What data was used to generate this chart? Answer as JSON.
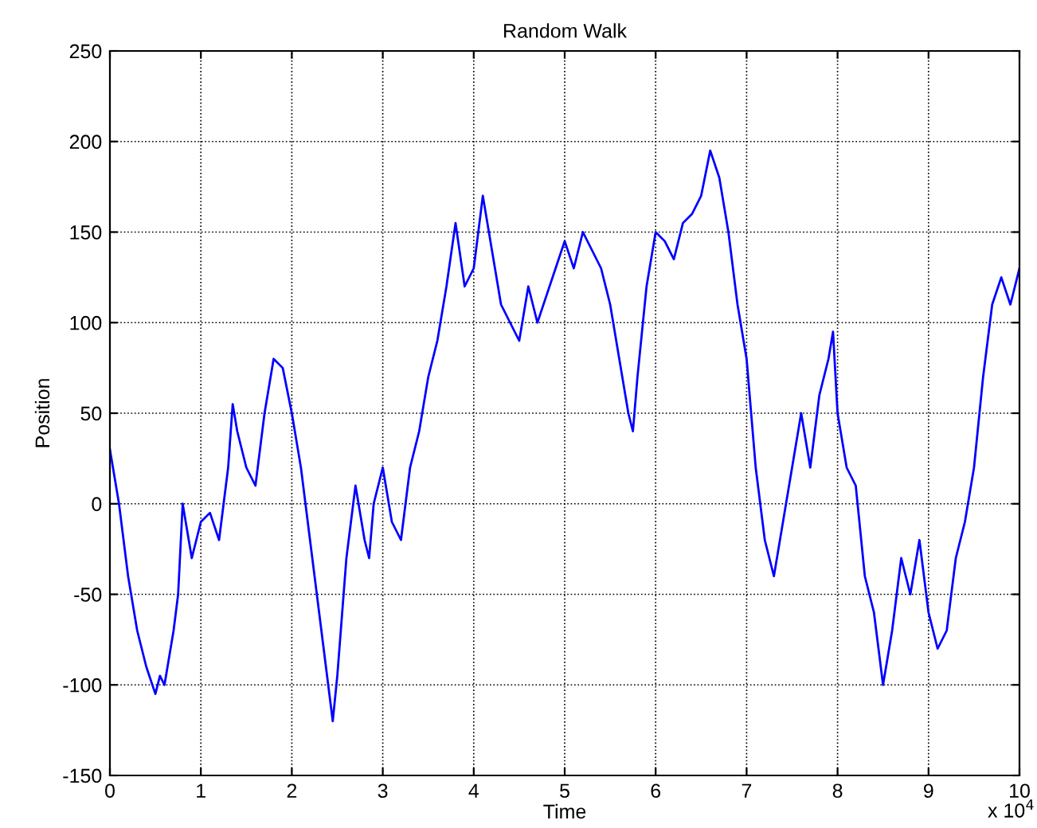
{
  "chart_data": {
    "type": "line",
    "title": "Random Walk",
    "xlabel": "Time",
    "ylabel": "Position",
    "annotations": [
      "x 10$^{4}$"
    ],
    "x": [
      0,
      0.1,
      0.2,
      0.3,
      0.4,
      0.5,
      0.55,
      0.6,
      0.7,
      0.75,
      0.8,
      0.9,
      1.0,
      1.1,
      1.2,
      1.3,
      1.35,
      1.4,
      1.5,
      1.6,
      1.7,
      1.8,
      1.9,
      2.0,
      2.1,
      2.2,
      2.3,
      2.4,
      2.45,
      2.5,
      2.6,
      2.7,
      2.8,
      2.85,
      2.9,
      3.0,
      3.1,
      3.2,
      3.3,
      3.4,
      3.5,
      3.6,
      3.7,
      3.8,
      3.9,
      4.0,
      4.1,
      4.2,
      4.3,
      4.4,
      4.5,
      4.6,
      4.7,
      4.8,
      4.9,
      5.0,
      5.1,
      5.2,
      5.3,
      5.4,
      5.5,
      5.6,
      5.7,
      5.75,
      5.8,
      5.9,
      6.0,
      6.1,
      6.2,
      6.3,
      6.4,
      6.5,
      6.6,
      6.7,
      6.8,
      6.9,
      7.0,
      7.1,
      7.2,
      7.3,
      7.4,
      7.5,
      7.6,
      7.7,
      7.8,
      7.9,
      7.95,
      8.0,
      8.1,
      8.2,
      8.3,
      8.4,
      8.5,
      8.6,
      8.7,
      8.8,
      8.9,
      9.0,
      9.1,
      9.2,
      9.3,
      9.4,
      9.5,
      9.6,
      9.7,
      9.8,
      9.9,
      10.0
    ],
    "series": [
      {
        "color": "#0000ff",
        "values": [
          30,
          0,
          -40,
          -70,
          -90,
          -105,
          -95,
          -100,
          -70,
          -50,
          0,
          -30,
          -10,
          -5,
          -20,
          20,
          55,
          40,
          20,
          10,
          50,
          80,
          75,
          50,
          20,
          -20,
          -60,
          -100,
          -120,
          -95,
          -30,
          10,
          -20,
          -30,
          0,
          20,
          -10,
          -20,
          20,
          40,
          70,
          90,
          120,
          155,
          120,
          130,
          170,
          140,
          110,
          100,
          90,
          120,
          100,
          115,
          130,
          145,
          130,
          150,
          140,
          130,
          110,
          80,
          50,
          40,
          70,
          120,
          150,
          145,
          135,
          155,
          160,
          170,
          195,
          180,
          150,
          110,
          80,
          20,
          -20,
          -40,
          -10,
          20,
          50,
          20,
          60,
          80,
          95,
          50,
          20,
          10,
          -40,
          -60,
          -100,
          -70,
          -30,
          -50,
          -20,
          -60,
          -80,
          -70,
          -30,
          -10,
          20,
          70,
          110,
          125,
          110,
          130
        ]
      }
    ],
    "xlim": [
      0,
      10
    ],
    "xticks": [
      0,
      1,
      2,
      3,
      4,
      5,
      6,
      7,
      8,
      9,
      10
    ],
    "ylim": [
      -150,
      250
    ],
    "yticks": [
      -150,
      -100,
      -50,
      0,
      50,
      100,
      150,
      200,
      250
    ],
    "grid": true,
    "line_style": "solid",
    "marker": "none"
  }
}
